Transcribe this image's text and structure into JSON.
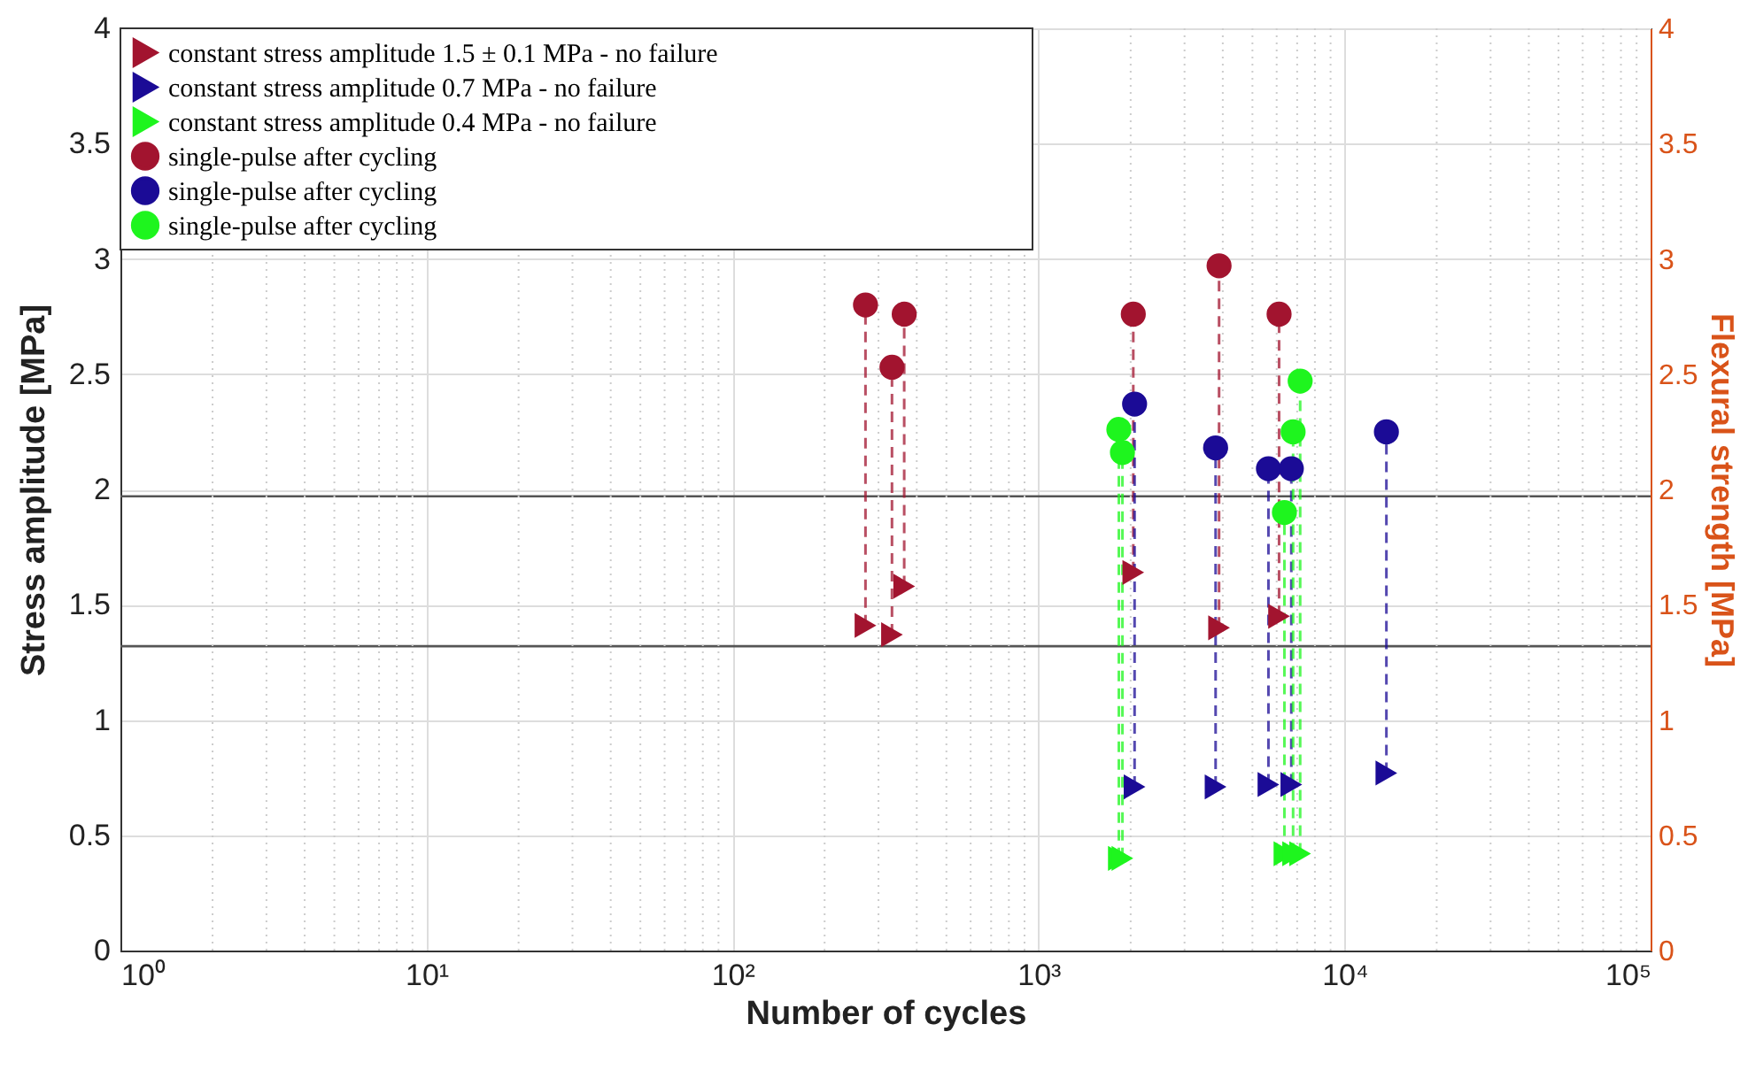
{
  "chart_data": {
    "type": "scatter",
    "xlabel": "Number of cycles",
    "ylabel": "Stress amplitude [MPa]",
    "y2label": "Flexural strength [MPa]",
    "log": "x",
    "grid": true,
    "legend": "top left",
    "xlim": [
      1,
      100000
    ],
    "xticks": [
      {
        "value": 1,
        "label": "10⁰"
      },
      {
        "value": 10,
        "label": "10¹"
      },
      {
        "value": 100,
        "label": "10²"
      },
      {
        "value": 1000,
        "label": "10³"
      },
      {
        "value": 10000,
        "label": "10⁴"
      },
      {
        "value": 100000,
        "label": "10⁵"
      }
    ],
    "ylim": [
      0,
      4
    ],
    "yticks": [
      0,
      0.5,
      1,
      1.5,
      2,
      2.5,
      3,
      3.5,
      4
    ],
    "y2lim": [
      0,
      4
    ],
    "y2ticks": [
      0,
      0.5,
      1,
      1.5,
      2,
      2.5,
      3,
      3.5,
      4
    ],
    "ref_lines": [
      {
        "axis": "y",
        "value": 1.97,
        "color": "#555555"
      },
      {
        "axis": "y",
        "value": 1.32,
        "color": "#555555"
      }
    ],
    "series": [
      {
        "name": "constant stress amplitude 1.5 ± 0.1 MPa - no failure",
        "color": "#a2142f",
        "marker": "triangle",
        "x": [
          272,
          332,
          364,
          2040,
          3890,
          6110
        ],
        "values": [
          1.41,
          1.37,
          1.58,
          1.64,
          1.4,
          1.45
        ]
      },
      {
        "name": "constant stress amplitude 0.7 MPa - no failure",
        "color": "#1b0b96",
        "marker": "triangle",
        "x": [
          2060,
          3790,
          5640,
          6700,
          13700
        ],
        "values": [
          0.71,
          0.71,
          0.72,
          0.72,
          0.77
        ]
      },
      {
        "name": "constant stress amplitude 0.4 MPa - no failure",
        "color": "#1ef51e",
        "marker": "triangle",
        "x": [
          1830,
          1880,
          6360,
          6790,
          7160
        ],
        "values": [
          0.4,
          0.4,
          0.42,
          0.42,
          0.42
        ]
      },
      {
        "name": "single-pulse after cycling",
        "color": "#a2142f",
        "marker": "circle",
        "axis": "y2",
        "x": [
          272,
          332,
          364,
          2040,
          3890,
          6110
        ],
        "values": [
          2.8,
          2.53,
          2.76,
          2.76,
          2.97,
          2.76
        ]
      },
      {
        "name": "single-pulse after cycling",
        "color": "#1b0b96",
        "marker": "circle",
        "axis": "y2",
        "x": [
          2060,
          3790,
          5640,
          6700,
          13700
        ],
        "values": [
          2.37,
          2.18,
          2.09,
          2.09,
          2.25
        ]
      },
      {
        "name": "single-pulse after cycling",
        "color": "#1ef51e",
        "marker": "circle",
        "axis": "y2",
        "x": [
          1830,
          1880,
          6360,
          6790,
          7160
        ],
        "values": [
          2.26,
          2.16,
          1.9,
          2.25,
          2.47
        ]
      }
    ]
  }
}
